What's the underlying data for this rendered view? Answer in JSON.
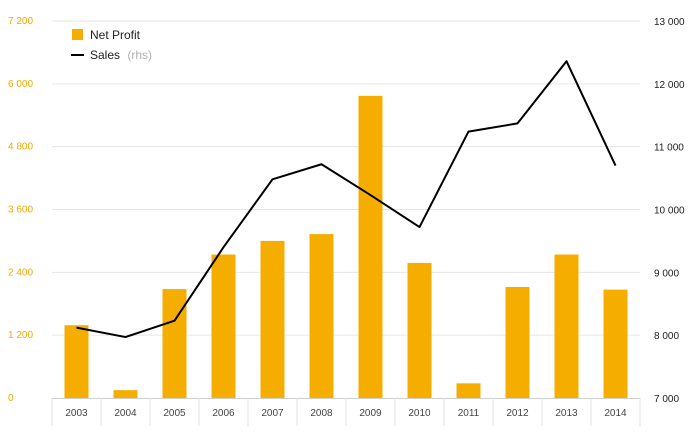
{
  "chart_data": {
    "type": "bar",
    "categories": [
      "2003",
      "2004",
      "2005",
      "2006",
      "2007",
      "2008",
      "2009",
      "2010",
      "2011",
      "2012",
      "2013",
      "2014"
    ],
    "series": [
      {
        "name": "Net Profit",
        "type": "bar",
        "axis": "left",
        "color": "#f5ae00",
        "values": [
          1390,
          150,
          2080,
          2740,
          3000,
          3130,
          5770,
          2580,
          280,
          2120,
          2740,
          2070
        ]
      },
      {
        "name": "Sales",
        "name_suffix": "(rhs)",
        "type": "line",
        "axis": "right",
        "color": "#000000",
        "values": [
          8120,
          7970,
          8230,
          9400,
          10480,
          10720,
          10230,
          9720,
          11240,
          11370,
          12360,
          10700
        ]
      }
    ],
    "y_left": {
      "ylim": [
        0,
        7200
      ],
      "ticks": [
        0,
        1200,
        2400,
        3600,
        4800,
        6000,
        7200
      ],
      "tick_labels": [
        "0",
        "1 200",
        "2 400",
        "3 600",
        "4 800",
        "6 000",
        "7 200"
      ],
      "color": "#f5a800"
    },
    "y_right": {
      "ylim": [
        7000,
        13000
      ],
      "ticks": [
        7000,
        8000,
        9000,
        10000,
        11000,
        12000,
        13000
      ],
      "tick_labels": [
        "7 000",
        "8 000",
        "9 000",
        "10 000",
        "11 000",
        "12 000",
        "13 000"
      ]
    },
    "grid": "horizontal",
    "legend": "top-left"
  }
}
